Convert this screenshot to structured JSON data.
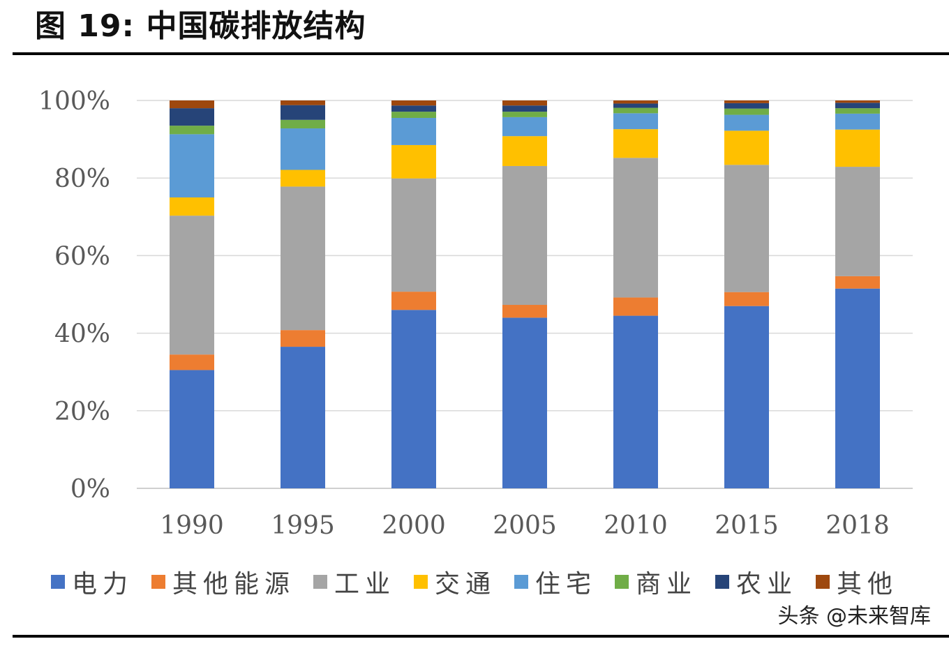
{
  "figure": {
    "title": "图 19:  中国碳排放结构"
  },
  "watermark": "头条 @未来智库",
  "chart_data": {
    "type": "bar",
    "stacked": true,
    "categories": [
      "1990",
      "1995",
      "2000",
      "2005",
      "2010",
      "2015",
      "2018"
    ],
    "y_tick_labels": [
      "0%",
      "20%",
      "40%",
      "60%",
      "80%",
      "100%"
    ],
    "ylim": [
      0,
      100
    ],
    "grid": true,
    "legend_position": "bottom",
    "series": [
      {
        "name": "电力",
        "color": "#4472C4",
        "values": [
          30.5,
          36.5,
          46.0,
          44.0,
          44.5,
          47.0,
          51.5
        ]
      },
      {
        "name": "其他能源",
        "color": "#ED7D31",
        "values": [
          4.0,
          4.3,
          4.7,
          3.3,
          4.7,
          3.6,
          3.2
        ]
      },
      {
        "name": "工业",
        "color": "#A5A5A5",
        "values": [
          35.8,
          37.0,
          29.2,
          35.8,
          36.0,
          32.8,
          28.2
        ]
      },
      {
        "name": "交通",
        "color": "#FFC000",
        "values": [
          4.7,
          4.3,
          8.6,
          7.7,
          7.4,
          8.8,
          9.6
        ]
      },
      {
        "name": "住宅",
        "color": "#5B9BD5",
        "values": [
          16.3,
          10.7,
          7.0,
          4.9,
          4.1,
          4.1,
          4.1
        ]
      },
      {
        "name": "商业",
        "color": "#70AD47",
        "values": [
          2.2,
          2.2,
          1.6,
          1.4,
          1.4,
          1.6,
          1.4
        ]
      },
      {
        "name": "农业",
        "color": "#264478",
        "values": [
          4.5,
          3.8,
          1.6,
          1.6,
          1.1,
          1.4,
          1.4
        ]
      },
      {
        "name": "其他",
        "color": "#9E480E",
        "values": [
          2.0,
          1.2,
          1.3,
          1.3,
          0.8,
          0.7,
          0.6
        ]
      }
    ]
  }
}
